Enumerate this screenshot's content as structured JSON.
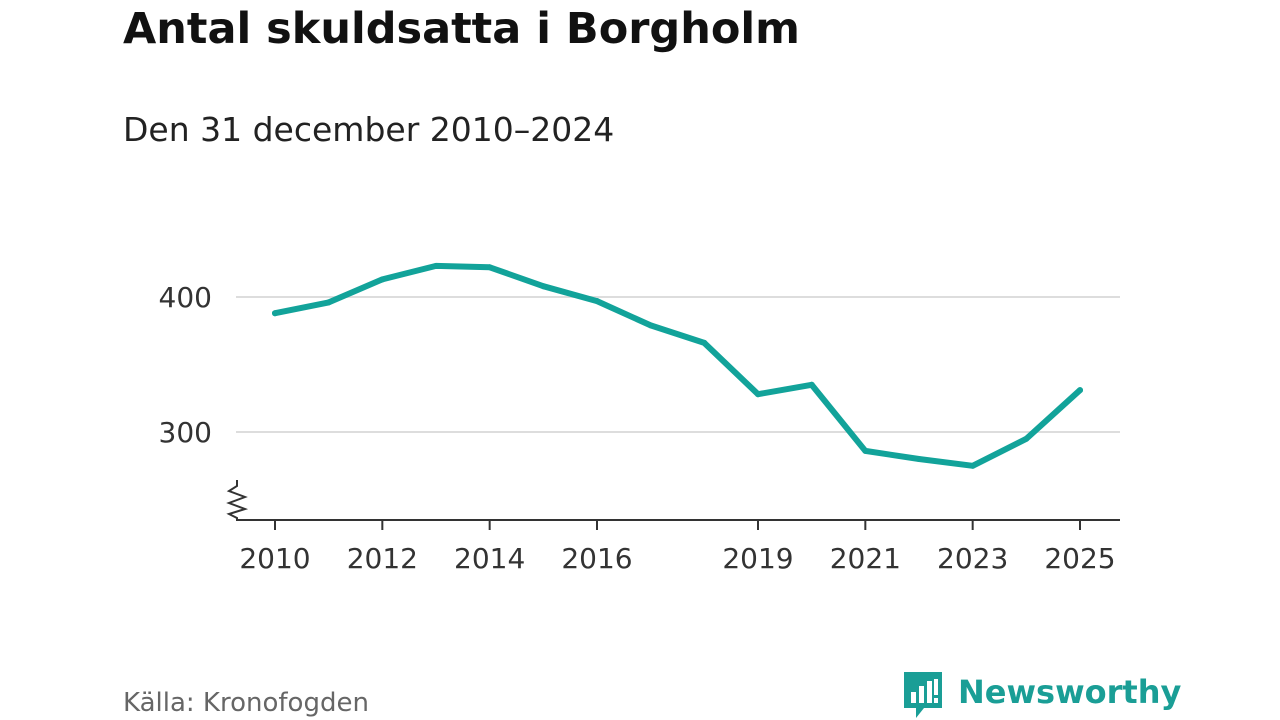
{
  "header": {
    "title": "Antal skuldsatta i Borgholm",
    "subtitle": "Den 31 december 2010–2024"
  },
  "footer": {
    "source": "Källa: Kronofogden",
    "brand": "Newsworthy"
  },
  "colors": {
    "line": "#12a39a",
    "grid": "#dddddd",
    "axis": "#333333",
    "brand": "#1a9e96"
  },
  "icons": {
    "brand_logo": "bar-chart-speech-bubble-icon",
    "axis_break": "zigzag-axis-break-icon"
  },
  "chart_data": {
    "type": "line",
    "title": "Antal skuldsatta i Borgholm",
    "subtitle": "Den 31 december 2010–2024",
    "xlabel": "",
    "ylabel": "",
    "x": [
      2010,
      2011,
      2012,
      2013,
      2014,
      2015,
      2016,
      2017,
      2018,
      2019,
      2020,
      2021,
      2022,
      2023,
      2024,
      2025
    ],
    "series": [
      {
        "values": [
          388,
          396,
          413,
          423,
          422,
          408,
          397,
          379,
          366,
          328,
          335,
          286,
          280,
          275,
          295,
          331
        ]
      }
    ],
    "x_ticks": [
      "2010",
      "2012",
      "2014",
      "2016",
      "2019",
      "2021",
      "2023",
      "2025"
    ],
    "y_ticks": [
      "300",
      "400"
    ],
    "xlim": [
      2010,
      2025
    ],
    "ylim": [
      235,
      465
    ],
    "y_axis_break": true,
    "grid": "horizontal",
    "legend": "none"
  }
}
